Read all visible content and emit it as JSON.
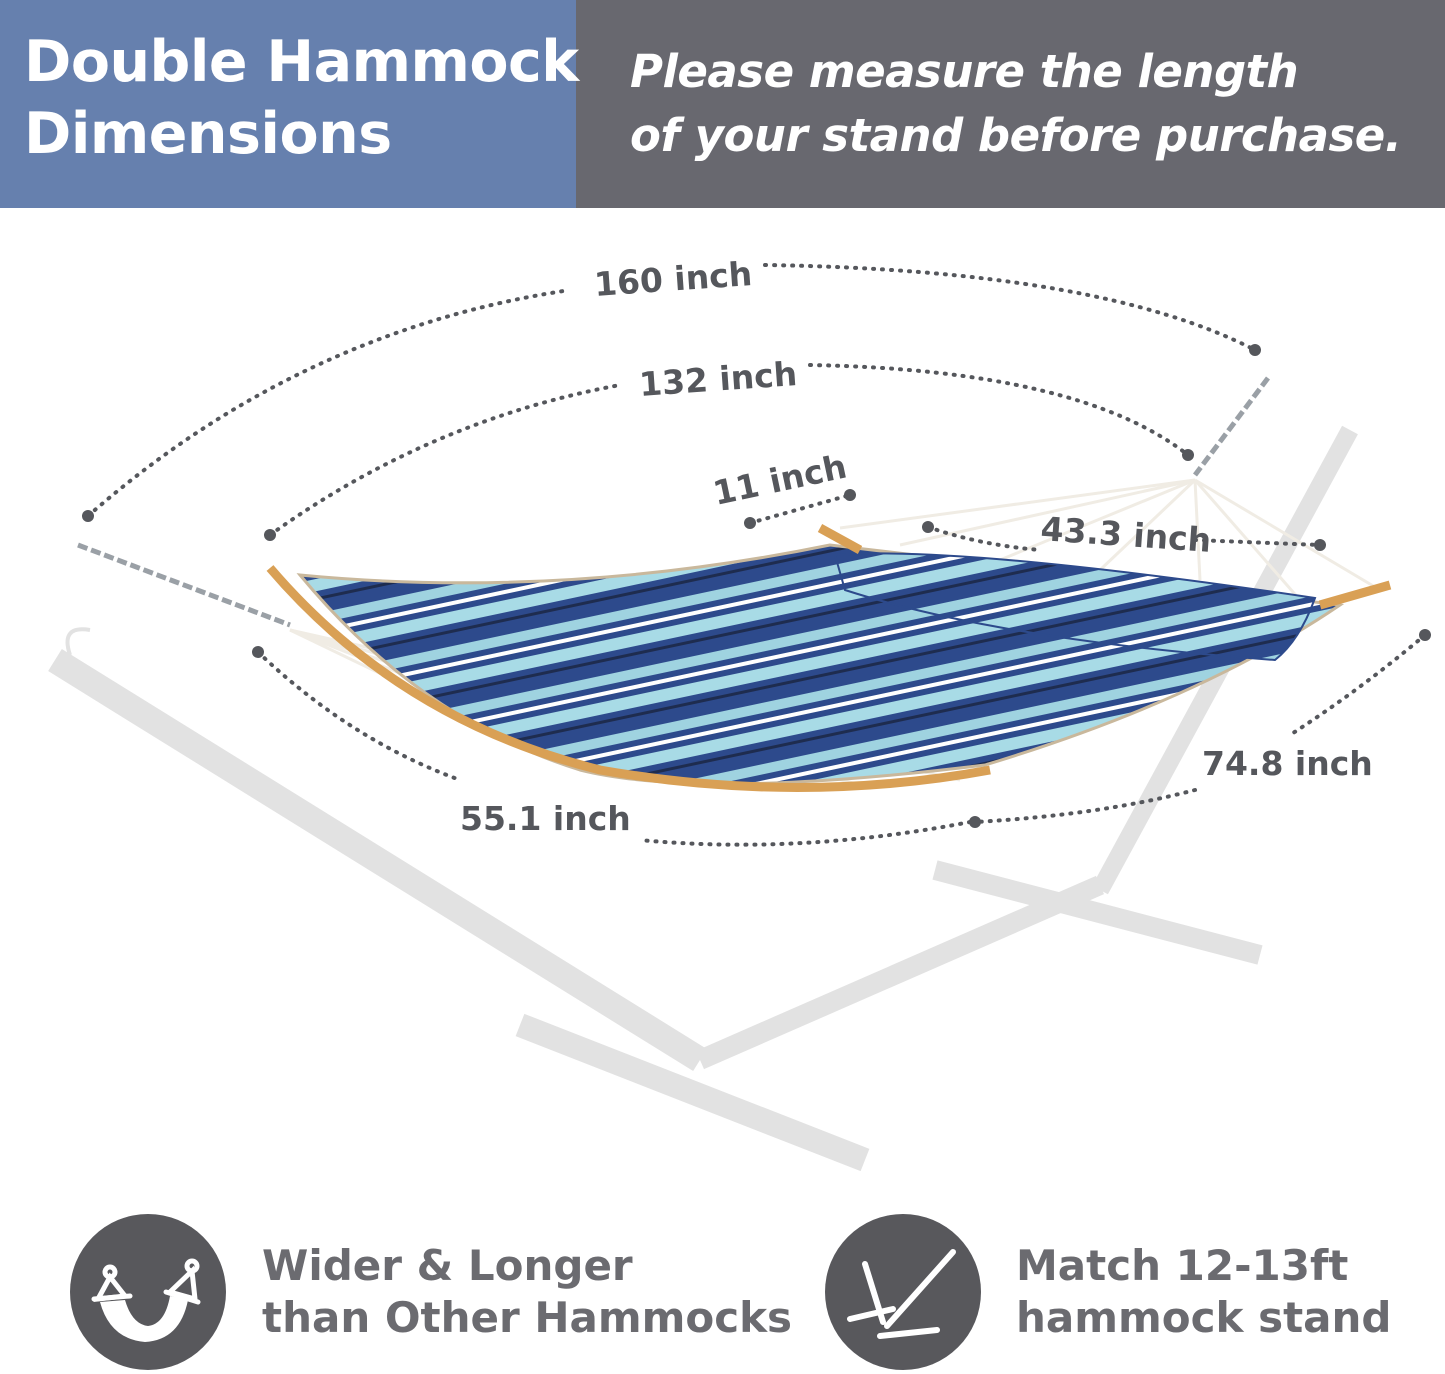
{
  "header": {
    "title_line1": "Double Hammock",
    "title_line2": "Dimensions",
    "note_line1": "Please measure the length",
    "note_line2": "of your stand before purchase."
  },
  "dimensions": {
    "overall_length": "160 inch",
    "bed_length": "132 inch",
    "spreader_offset": "11 inch",
    "pillow_length": "43.3 inch",
    "bed_width": "74.8 inch",
    "spreader_bar": "55.1 inch"
  },
  "features": [
    {
      "icon": "hammock-icon",
      "line1": "Wider & Longer",
      "line2": "than Other Hammocks"
    },
    {
      "icon": "stand-icon",
      "line1": "Match 12-13ft",
      "line2": "hammock stand"
    }
  ],
  "colors": {
    "header_left": "#6680ae",
    "header_right": "#68686f",
    "stripe_navy": "#2d4a8c",
    "stripe_light": "#9fd3e0",
    "wood": "#d9a055",
    "stand": "#e2e2e2"
  }
}
